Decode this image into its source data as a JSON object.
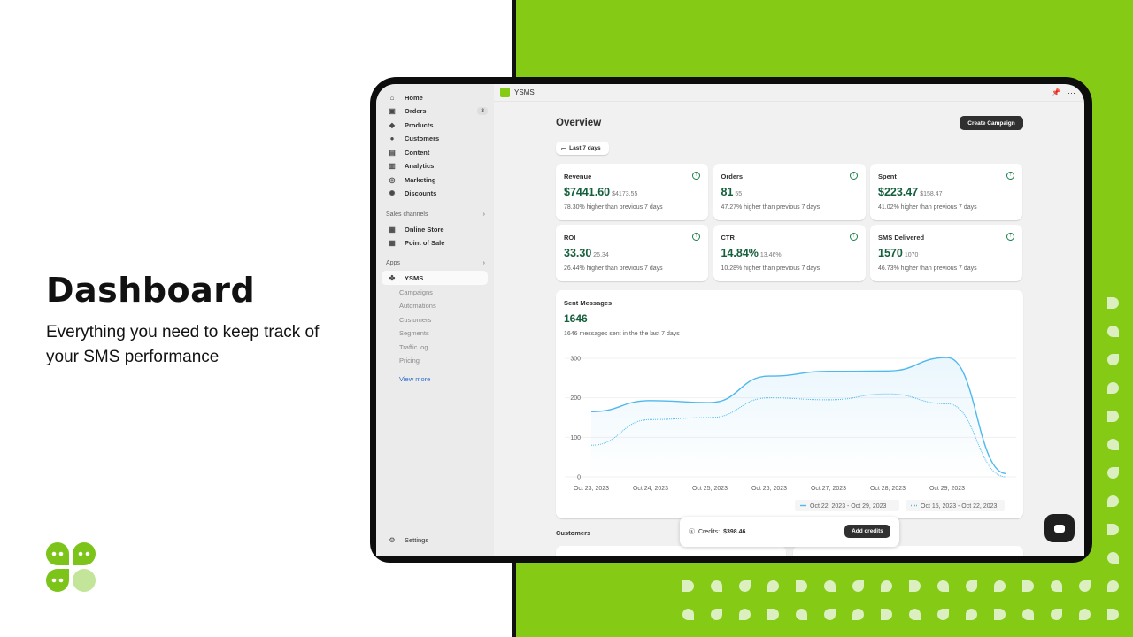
{
  "hero": {
    "title": "Dashboard",
    "subtitle": "Everything you need to keep track of your SMS performance"
  },
  "colors": {
    "brand_green": "#85cb15",
    "value_green": "#14603d",
    "series": "#4fb8ee"
  },
  "sidebar": {
    "items": [
      {
        "label": "Home",
        "icon": "home-icon"
      },
      {
        "label": "Orders",
        "icon": "orders-icon",
        "badge": "3"
      },
      {
        "label": "Products",
        "icon": "tag-icon"
      },
      {
        "label": "Customers",
        "icon": "person-icon"
      },
      {
        "label": "Content",
        "icon": "content-icon"
      },
      {
        "label": "Analytics",
        "icon": "bar-chart-icon"
      },
      {
        "label": "Marketing",
        "icon": "marketing-icon"
      },
      {
        "label": "Discounts",
        "icon": "discount-icon"
      }
    ],
    "sales_channels_label": "Sales channels",
    "channels": [
      {
        "label": "Online Store"
      },
      {
        "label": "Point of Sale"
      }
    ],
    "apps_label": "Apps",
    "app": "YSMS",
    "app_items": [
      "Campaigns",
      "Automations",
      "Customers",
      "Segments",
      "Traffic log",
      "Pricing"
    ],
    "view_more": "View more",
    "settings": "Settings"
  },
  "topbar": {
    "app_name": "YSMS"
  },
  "main": {
    "title": "Overview",
    "create_button": "Create Campaign",
    "date_filter": "Last 7 days",
    "kpis": [
      {
        "label": "Revenue",
        "value": "$7441.60",
        "prev": "$4173.55",
        "desc": "78.30% higher than previous 7 days"
      },
      {
        "label": "Orders",
        "value": "81",
        "prev": "55",
        "desc": "47.27% higher than previous 7 days"
      },
      {
        "label": "Spent",
        "value": "$223.47",
        "prev": "$158.47",
        "desc": "41.02% higher than previous 7 days"
      },
      {
        "label": "ROI",
        "value": "33.30",
        "prev": "26.34",
        "desc": "26.44% higher than previous 7 days"
      },
      {
        "label": "CTR",
        "value": "14.84%",
        "prev": "13.46%",
        "desc": "10.28% higher than previous 7 days"
      },
      {
        "label": "SMS Delivered",
        "value": "1570",
        "prev": "1070",
        "desc": "46.73% higher than previous 7 days"
      }
    ],
    "sent": {
      "title": "Sent Messages",
      "value": "1646",
      "desc": "1646 messages sent in the the last 7 days"
    },
    "customers_title": "Customers",
    "credits_label": "Credits:",
    "credits_value": "$398.46",
    "add_credits": "Add credits"
  },
  "chart_data": {
    "type": "line",
    "x": [
      "Oct 23, 2023",
      "Oct 24, 2023",
      "Oct 25, 2023",
      "Oct 26, 2023",
      "Oct 27, 2023",
      "Oct 28, 2023",
      "Oct 29, 2023",
      ""
    ],
    "yticks": [
      "0",
      "100",
      "200",
      "300"
    ],
    "ylim": [
      0,
      300
    ],
    "grid": true,
    "legend": "bottom-right",
    "series": [
      {
        "name": "Oct 22, 2023 - Oct 29, 2023",
        "style": "solid",
        "values": [
          165,
          193,
          188,
          255,
          267,
          268,
          302,
          8
        ]
      },
      {
        "name": "Oct 15, 2023 - Oct 22, 2023",
        "style": "dotted",
        "values": [
          80,
          145,
          150,
          200,
          195,
          210,
          185,
          0
        ]
      }
    ]
  }
}
